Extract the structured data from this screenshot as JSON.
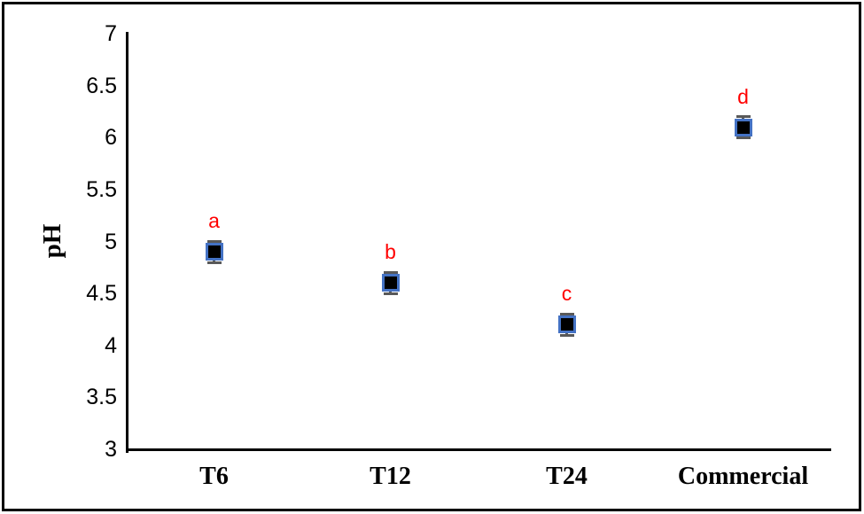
{
  "chart_data": {
    "type": "scatter",
    "title": "",
    "xlabel": "",
    "ylabel": "pH",
    "categories": [
      "T6",
      "T12",
      "T24",
      "Commercial"
    ],
    "values": [
      4.9,
      4.6,
      4.2,
      6.1
    ],
    "errors": [
      0.1,
      0.1,
      0.1,
      0.1
    ],
    "point_labels": [
      "a",
      "b",
      "c",
      "d"
    ],
    "ylim": [
      3,
      7
    ],
    "ytick_labels": [
      "7",
      "6.5",
      "6",
      "5.5",
      "5",
      "4.5",
      "4",
      "3.5",
      "3"
    ],
    "grid": "off",
    "legend": "none",
    "colors": {
      "marker_fill": "#000000",
      "marker_border": "#4472C4",
      "error_bar": "#595959",
      "point_label": "#FF0000",
      "axis": "#000000",
      "frame": "#000000",
      "background": "#FFFFFF"
    }
  }
}
